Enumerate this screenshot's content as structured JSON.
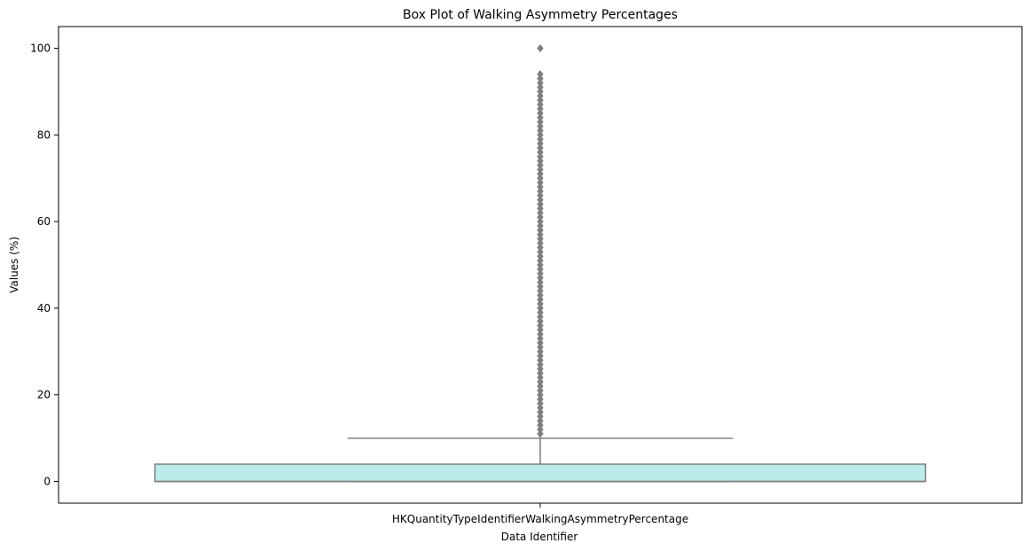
{
  "chart_data": {
    "type": "box",
    "title": "Box Plot of Walking Asymmetry Percentages",
    "xlabel": "Data Identifier",
    "ylabel": "Values (%)",
    "categories": [
      "HKQuantityTypeIdentifierWalkingAsymmetryPercentage"
    ],
    "ylim": [
      -5,
      105
    ],
    "yticks": [
      0,
      20,
      40,
      60,
      80,
      100
    ],
    "grid": false,
    "box": {
      "q1": 0,
      "median": 0,
      "q3": 4,
      "whisker_low": 0,
      "whisker_high": 10
    },
    "outliers": [
      11,
      12,
      13,
      14,
      15,
      16,
      17,
      18,
      19,
      20,
      21,
      22,
      23,
      24,
      25,
      26,
      27,
      28,
      29,
      30,
      31,
      32,
      33,
      34,
      35,
      36,
      37,
      38,
      39,
      40,
      41,
      42,
      43,
      44,
      45,
      46,
      47,
      48,
      49,
      50,
      51,
      52,
      53,
      54,
      55,
      56,
      57,
      58,
      59,
      60,
      61,
      62,
      63,
      64,
      65,
      66,
      67,
      68,
      69,
      70,
      71,
      72,
      73,
      74,
      75,
      76,
      77,
      78,
      79,
      80,
      81,
      82,
      83,
      84,
      85,
      86,
      87,
      88,
      89,
      90,
      91,
      92,
      93,
      94,
      100
    ],
    "colors": {
      "box_fill": "#bdebe9",
      "line": "#7f7f7f",
      "outlier": "#7f7f7f"
    }
  }
}
